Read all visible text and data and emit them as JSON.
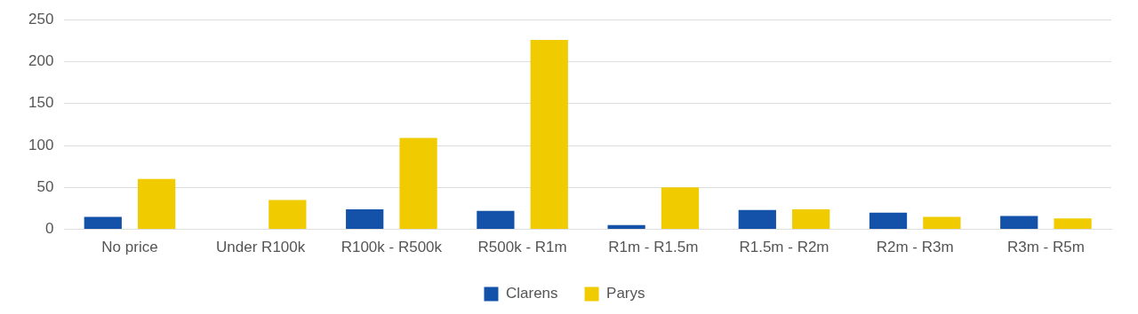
{
  "chart_data": {
    "type": "bar",
    "categories": [
      "No price",
      "Under R100k",
      "R100k - R500k",
      "R500k - R1m",
      "R1m - R1.5m",
      "R1.5m - R2m",
      "R2m - R3m",
      "R3m - R5m"
    ],
    "series": [
      {
        "name": "Clarens",
        "color": "#1352a8",
        "values": [
          15,
          0,
          24,
          22,
          5,
          23,
          20,
          16
        ]
      },
      {
        "name": "Parys",
        "color": "#f0cb00",
        "values": [
          60,
          35,
          109,
          226,
          50,
          24,
          15,
          13
        ]
      }
    ],
    "ylim": [
      0,
      250
    ],
    "yticks": [
      0,
      50,
      100,
      150,
      200,
      250
    ],
    "grid": "y",
    "legend": "bottom"
  }
}
